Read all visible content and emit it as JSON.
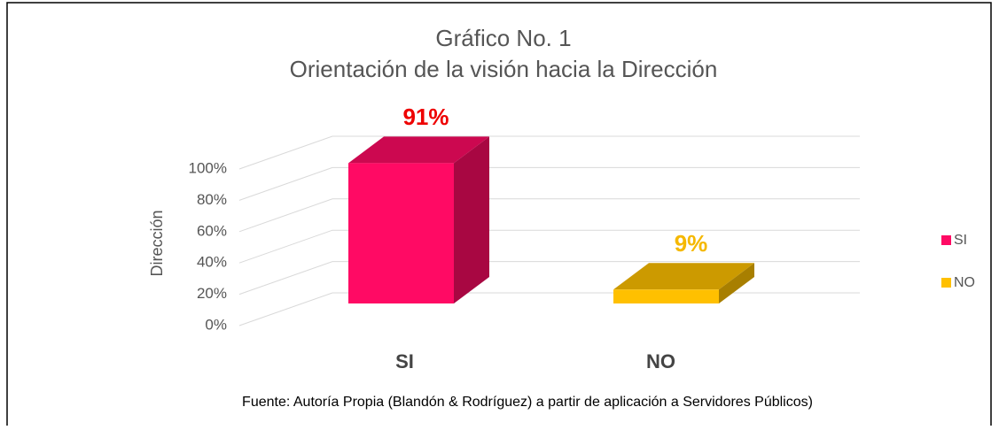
{
  "chart_data": {
    "type": "bar3d",
    "title": [
      "Gráfico No. 1",
      "Orientación de la visión hacia la Dirección"
    ],
    "ylabel": "Dirección",
    "categories": [
      "SI",
      "NO"
    ],
    "values": [
      91,
      9
    ],
    "value_labels": [
      "91%",
      "9%"
    ],
    "colors": [
      "#ff0a64",
      "#ffc000"
    ],
    "label_colors": [
      "#ee0000",
      "#f5b800"
    ],
    "ylim": [
      0,
      120
    ],
    "yticks": [
      {
        "value": 0,
        "label": "0%"
      },
      {
        "value": 20,
        "label": "20%"
      },
      {
        "value": 40,
        "label": "40%"
      },
      {
        "value": 60,
        "label": "60%"
      },
      {
        "value": 80,
        "label": "80%"
      },
      {
        "value": 100,
        "label": "100%"
      }
    ],
    "grid": true,
    "legend": "right",
    "caption": "Fuente: Autoría Propia (Blandón & Rodríguez) a partir de aplicación a  Servidores Públicos)"
  }
}
